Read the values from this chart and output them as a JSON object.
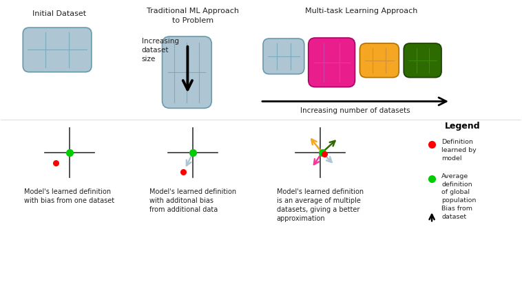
{
  "bg_color": "#ffffff",
  "title_initial": "Initial Dataset",
  "title_traditional": "Traditional ML Approach\nto Problem",
  "title_multitask": "Multi-task Learning Approach",
  "label_increasing_size": "Increasing\ndataset\nsize",
  "label_increasing_num": "Increasing number of datasets",
  "caption1": "Model's learned definition\nwith bias from one dataset",
  "caption2": "Model's learned definition\nwith additonal bias\nfrom additional data",
  "caption3": "Model's learned definition\nis an average of multiple\ndatasets, giving a better\napproximation",
  "legend_title": "Legend",
  "legend1": "Definition\nlearned by\nmodel",
  "legend2": "Average\ndefinition\nof global\npopulation",
  "legend3": "Bias from\ndataset",
  "box_light_blue": "#aec6d4",
  "box_pink": "#e91e8c",
  "box_orange": "#f5a623",
  "box_dark_green": "#2d6a00",
  "arrow_color": "#000000",
  "red_dot_color": "#ff0000",
  "green_dot_color": "#00cc00"
}
